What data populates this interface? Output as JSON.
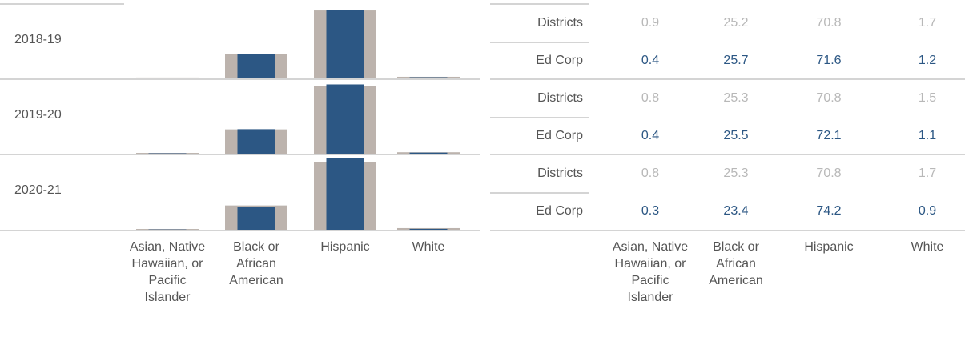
{
  "chart_data": {
    "type": "bar",
    "categories": [
      "Asian, Native Hawaiian, or Pacific Islander",
      "Black or African American",
      "Hispanic",
      "White"
    ],
    "panels": [
      {
        "title": "2018-19",
        "series": [
          {
            "name": "Districts",
            "color": "#bcb3ad",
            "values": [
              0.9,
              25.2,
              70.8,
              1.7
            ]
          },
          {
            "name": "Ed Corp",
            "color": "#2c5784",
            "values": [
              0.4,
              25.7,
              71.6,
              1.2
            ]
          }
        ]
      },
      {
        "title": "2019-20",
        "series": [
          {
            "name": "Districts",
            "color": "#bcb3ad",
            "values": [
              0.8,
              25.3,
              70.8,
              1.5
            ]
          },
          {
            "name": "Ed Corp",
            "color": "#2c5784",
            "values": [
              0.4,
              25.5,
              72.1,
              1.1
            ]
          }
        ]
      },
      {
        "title": "2020-21",
        "series": [
          {
            "name": "Districts",
            "color": "#bcb3ad",
            "values": [
              0.8,
              25.3,
              70.8,
              1.7
            ]
          },
          {
            "name": "Ed Corp",
            "color": "#2c5784",
            "values": [
              0.3,
              23.4,
              74.2,
              0.9
            ]
          }
        ]
      }
    ]
  }
}
